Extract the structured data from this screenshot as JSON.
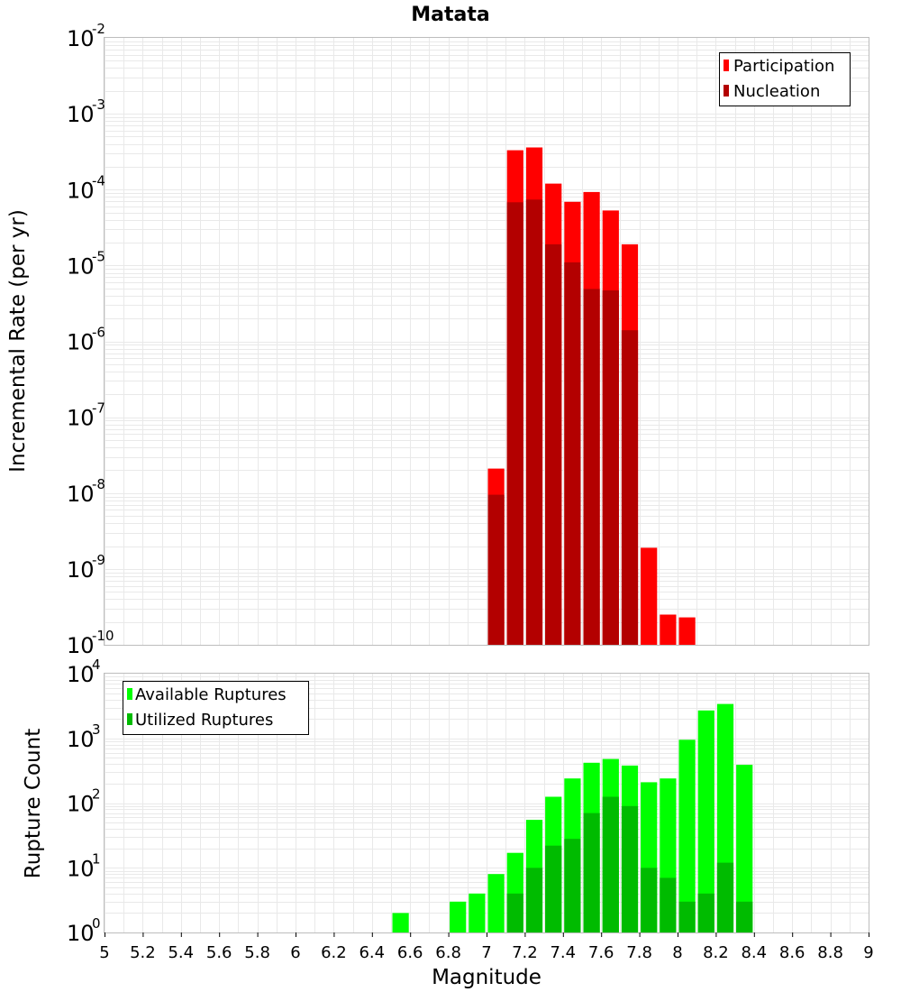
{
  "chart_data": [
    {
      "type": "bar",
      "title": "Matata",
      "ylabel": "Incremental Rate (per yr)",
      "xlim": [
        5,
        9
      ],
      "ylim_exp": [
        -10,
        -2
      ],
      "y_scale": "log",
      "bin_width": 0.1,
      "legend": {
        "placement": "top-right"
      },
      "series": [
        {
          "name": "Participation",
          "color": "#ff0000",
          "x": [
            7.05,
            7.15,
            7.25,
            7.35,
            7.45,
            7.55,
            7.65,
            7.75,
            7.85,
            7.95,
            8.05
          ],
          "values": [
            2.1e-08,
            0.00033,
            0.00036,
            0.00012,
            6.9e-05,
            9.3e-05,
            5.3e-05,
            1.9e-05,
            1.9e-09,
            2.5e-10,
            2.3e-10
          ]
        },
        {
          "name": "Nucleation",
          "color": "#b30000",
          "x": [
            7.05,
            7.15,
            7.25,
            7.35,
            7.45,
            7.55,
            7.65,
            7.75
          ],
          "values": [
            9.5e-09,
            6.8e-05,
            7.4e-05,
            1.9e-05,
            1.1e-05,
            4.9e-06,
            4.7e-06,
            1.4e-06
          ]
        }
      ]
    },
    {
      "type": "bar",
      "xlabel": "Magnitude",
      "ylabel": "Rupture Count",
      "xlim": [
        5,
        9
      ],
      "ylim_exp": [
        0,
        4
      ],
      "y_scale": "log",
      "bin_width": 0.1,
      "x_ticks": [
        "5",
        "5.2",
        "5.4",
        "5.6",
        "5.8",
        "6",
        "6.2",
        "6.4",
        "6.6",
        "6.8",
        "7",
        "7.2",
        "7.4",
        "7.6",
        "7.8",
        "8",
        "8.2",
        "8.4",
        "8.6",
        "8.8",
        "9"
      ],
      "legend": {
        "placement": "top-left"
      },
      "series": [
        {
          "name": "Available Ruptures",
          "color": "#00ff00",
          "x": [
            6.55,
            6.75,
            6.85,
            6.95,
            7.05,
            7.15,
            7.25,
            7.35,
            7.45,
            7.55,
            7.65,
            7.75,
            7.85,
            7.95,
            8.05,
            8.15,
            8.25,
            8.35
          ],
          "values": [
            2,
            1,
            3,
            4,
            8,
            17,
            55,
            125,
            240,
            420,
            480,
            380,
            210,
            240,
            950,
            2700,
            3400,
            390
          ]
        },
        {
          "name": "Utilized Ruptures",
          "color": "#00bb00",
          "x": [
            7.05,
            7.15,
            7.25,
            7.35,
            7.45,
            7.55,
            7.65,
            7.75,
            7.85,
            7.95,
            8.05,
            8.15,
            8.25,
            8.35
          ],
          "values": [
            1,
            4,
            10,
            22,
            28,
            70,
            125,
            90,
            10,
            7,
            3,
            4,
            12,
            3
          ]
        }
      ]
    }
  ]
}
